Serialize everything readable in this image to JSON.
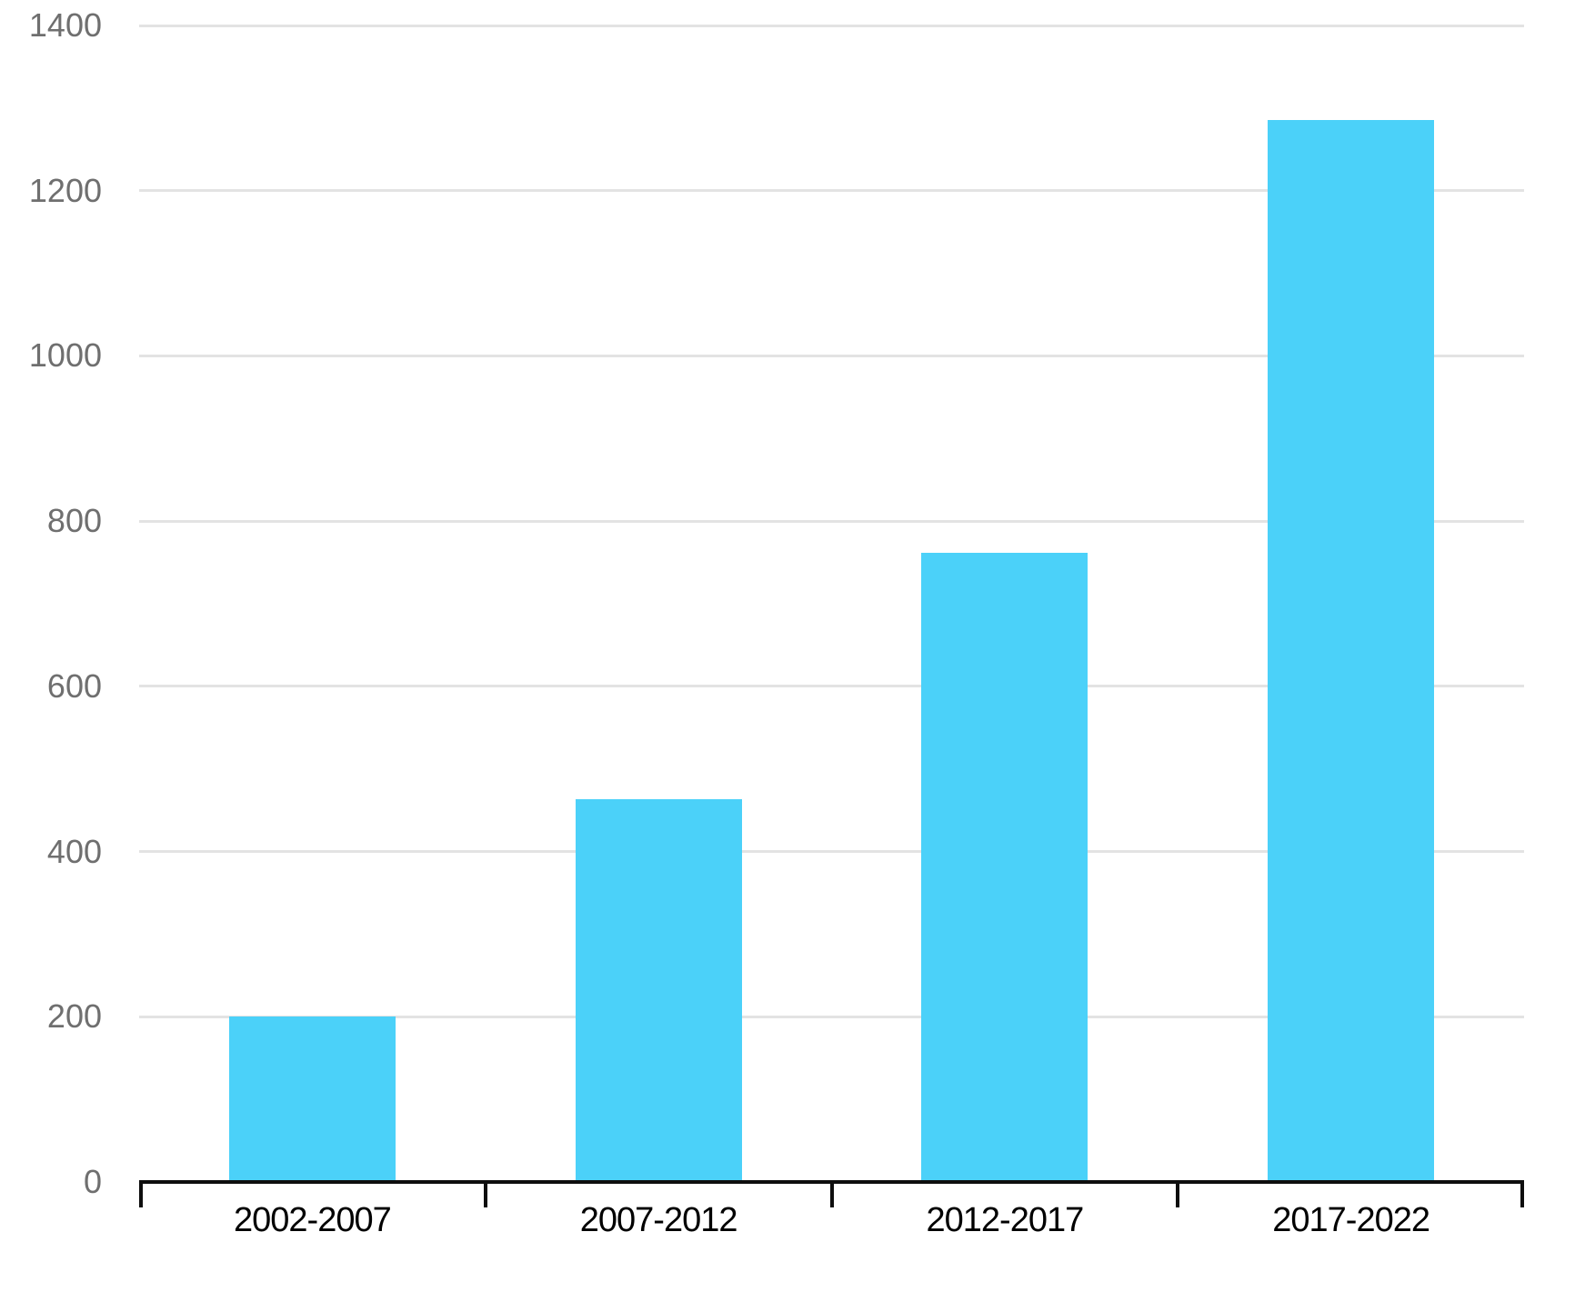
{
  "chart_data": {
    "type": "bar",
    "title": "",
    "xlabel": "",
    "ylabel": "",
    "categories": [
      "2002-2007",
      "2007-2012",
      "2012-2017",
      "2017-2022"
    ],
    "values": [
      200,
      463,
      762,
      1285
    ],
    "ylim": [
      0,
      1400
    ],
    "yticks": [
      0,
      200,
      400,
      600,
      800,
      1000,
      1200,
      1400
    ],
    "grid": true,
    "legend": false,
    "colors": {
      "bar": "#4BD1F9",
      "gridline": "#E3E3E3",
      "axis_line": "#0E0E0E",
      "y_tick_label": "#6F6F6F",
      "x_tick_label": "#000000",
      "background": "#FFFFFF"
    }
  }
}
